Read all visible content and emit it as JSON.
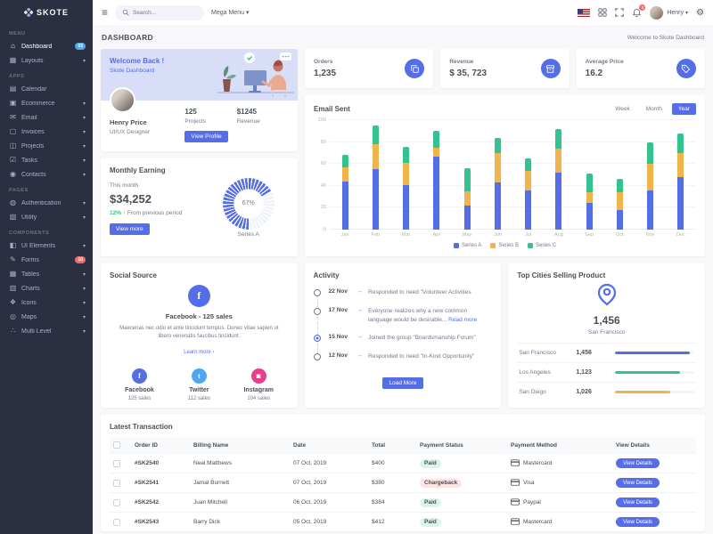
{
  "colors": {
    "primary": "#556ee6",
    "success": "#34c38f",
    "warning": "#f1b44c",
    "danger": "#f46a6a",
    "info": "#50a5f1",
    "instagram": "#e83e8c",
    "sidebar_bg": "#2a3042",
    "body_bg": "#f8f8fb"
  },
  "brand": {
    "name": "SKOTE"
  },
  "topbar": {
    "search_placeholder": "Search...",
    "mega_menu_label": "Mega Menu",
    "notification_count": "3",
    "user_name": "Henry"
  },
  "page": {
    "title": "DASHBOARD",
    "welcome_note": "Welcome to Skote Dashboard"
  },
  "sidebar": {
    "sections": [
      {
        "label": "MENU",
        "items": [
          {
            "label": "Dashboard",
            "icon": "home-icon",
            "glyph": "⌂",
            "badge": "03",
            "badge_color": "#50a5f1",
            "active": true
          },
          {
            "label": "Layouts",
            "icon": "layouts-icon",
            "glyph": "▦",
            "chevron": true
          }
        ]
      },
      {
        "label": "APPS",
        "items": [
          {
            "label": "Calendar",
            "icon": "calendar-icon",
            "glyph": "▤"
          },
          {
            "label": "Ecommerce",
            "icon": "ecommerce-icon",
            "glyph": "▣",
            "chevron": true
          },
          {
            "label": "Email",
            "icon": "email-icon",
            "glyph": "✉",
            "chevron": true
          },
          {
            "label": "Invoices",
            "icon": "invoices-icon",
            "glyph": "▢",
            "chevron": true
          },
          {
            "label": "Projects",
            "icon": "projects-icon",
            "glyph": "◫",
            "chevron": true
          },
          {
            "label": "Tasks",
            "icon": "tasks-icon",
            "glyph": "☑",
            "chevron": true
          },
          {
            "label": "Contacts",
            "icon": "contacts-icon",
            "glyph": "◉",
            "chevron": true
          }
        ]
      },
      {
        "label": "PAGES",
        "items": [
          {
            "label": "Authentication",
            "icon": "authentication-icon",
            "glyph": "◍",
            "chevron": true
          },
          {
            "label": "Utility",
            "icon": "utility-icon",
            "glyph": "▧",
            "chevron": true
          }
        ]
      },
      {
        "label": "COMPONENTS",
        "items": [
          {
            "label": "UI Elements",
            "icon": "ui-elements-icon",
            "glyph": "◧",
            "chevron": true
          },
          {
            "label": "Forms",
            "icon": "forms-icon",
            "glyph": "✎",
            "badge": "10",
            "badge_color": "#f46a6a"
          },
          {
            "label": "Tables",
            "icon": "tables-icon",
            "glyph": "▦",
            "chevron": true
          },
          {
            "label": "Charts",
            "icon": "charts-icon",
            "glyph": "▥",
            "chevron": true
          },
          {
            "label": "Icons",
            "icon": "icons-icon",
            "glyph": "❖",
            "chevron": true
          },
          {
            "label": "Maps",
            "icon": "maps-icon",
            "glyph": "◎",
            "chevron": true
          },
          {
            "label": "Multi Level",
            "icon": "multi-level-icon",
            "glyph": "∴",
            "chevron": true
          }
        ]
      }
    ]
  },
  "welcome_card": {
    "title": "Welcome Back !",
    "subtitle": "Skote Dashboard",
    "user_name": "Henry Price",
    "user_role": "UI/UX Designer",
    "stats": [
      {
        "value": "125",
        "label": "Projects"
      },
      {
        "value": "$1245",
        "label": "Revenue"
      }
    ],
    "button_label": "View Profile"
  },
  "monthly_earning": {
    "title": "Monthly Earning",
    "period": "This month",
    "amount": "$34,252",
    "delta": "12%",
    "delta_note": "From previous period",
    "button_label": "View more",
    "gauge_percent": "67%",
    "gauge_series": "Series A"
  },
  "stat_cards": [
    {
      "label": "Orders",
      "value": "1,235",
      "icon": "copy-icon"
    },
    {
      "label": "Revenue",
      "value": "$ 35, 723",
      "icon": "archive-icon"
    },
    {
      "label": "Average Price",
      "value": "16.2",
      "icon": "tag-icon"
    }
  ],
  "email_sent": {
    "title": "Email Sent",
    "range_buttons": [
      "Week",
      "Month",
      "Year"
    ],
    "active_range": "Year"
  },
  "chart_data": [
    {
      "type": "bar",
      "stacked": true,
      "title": "Email Sent",
      "categories": [
        "Jan",
        "Feb",
        "Mar",
        "Apr",
        "May",
        "Jun",
        "Jul",
        "Aug",
        "Sep",
        "Oct",
        "Nov",
        "Dec"
      ],
      "series": [
        {
          "name": "Series A",
          "color": "#556ee6",
          "values": [
            44,
            55,
            41,
            67,
            22,
            43,
            36,
            52,
            24,
            18,
            36,
            48
          ]
        },
        {
          "name": "Series B",
          "color": "#f1b44c",
          "values": [
            13,
            23,
            20,
            8,
            13,
            27,
            18,
            22,
            10,
            16,
            24,
            22
          ]
        },
        {
          "name": "Series C",
          "color": "#34c38f",
          "values": [
            11,
            17,
            15,
            15,
            21,
            14,
            11,
            18,
            17,
            12,
            20,
            18
          ]
        }
      ],
      "xlabel": "",
      "ylabel": "",
      "ylim": [
        0,
        100
      ],
      "yticks": [
        0,
        20,
        40,
        60,
        80,
        100
      ],
      "grid": true,
      "legend_position": "bottom"
    },
    {
      "type": "radial",
      "title": "Monthly Earning",
      "series_name": "Series A",
      "value_percent": 67,
      "color": "#556ee6"
    },
    {
      "type": "bar",
      "title": "Top Cities Selling Product",
      "categories": [
        "San Francisco",
        "Los Angeles",
        "San Diego"
      ],
      "values": [
        1456,
        1123,
        1026
      ]
    }
  ],
  "social": {
    "title": "Social Source",
    "main_name": "Facebook",
    "main_sales": "125 sales",
    "description": "Maecenas nec odio et ante tincidunt tempus. Donec vitae sapien ut libero venenatis faucibus tincidunt.",
    "learn_more": "Learn more",
    "accounts": [
      {
        "name": "Facebook",
        "sales": "125 sales",
        "color": "#556ee6",
        "icon": "facebook-icon",
        "glyph": "f"
      },
      {
        "name": "Twitter",
        "sales": "112 sales",
        "color": "#50a5f1",
        "icon": "twitter-icon",
        "glyph": "t"
      },
      {
        "name": "Instagram",
        "sales": "104 sales",
        "color": "#e83e8c",
        "icon": "instagram-icon",
        "glyph": "◙"
      }
    ]
  },
  "activity": {
    "title": "Activity",
    "items": [
      {
        "date": "22 Nov",
        "text": "Responded to need \"Volunteer Activities",
        "active": false
      },
      {
        "date": "17 Nov",
        "text": "Everyone realizes why a new common language would be desirable...",
        "link": "Read more",
        "active": false
      },
      {
        "date": "15 Nov",
        "text": "Joined the group \"Boardsmanship Forum\"",
        "active": true
      },
      {
        "date": "12 Nov",
        "text": "Responded to need \"In-Kind Opportunity\"",
        "active": false
      }
    ],
    "button_label": "Load More"
  },
  "top_cities": {
    "title": "Top Cities Selling Product",
    "highlight_value": "1,456",
    "highlight_city": "San Francisco",
    "rows": [
      {
        "city": "San Francisco",
        "value": "1,456",
        "pct": 94,
        "color": "#556ee6"
      },
      {
        "city": "Los Angeles",
        "value": "1,123",
        "pct": 82,
        "color": "#34c38f"
      },
      {
        "city": "San Diego",
        "value": "1,026",
        "pct": 70,
        "color": "#f1b44c"
      }
    ]
  },
  "transactions": {
    "title": "Latest Transaction",
    "columns": [
      "Order ID",
      "Billing Name",
      "Date",
      "Total",
      "Payment Status",
      "Payment Method",
      "View Details"
    ],
    "rows": [
      {
        "order_id": "#SK2540",
        "name": "Neal Matthews",
        "date": "07 Oct, 2019",
        "total": "$400",
        "status": "Paid",
        "status_type": "success",
        "method": "Mastercard",
        "action": "View Details"
      },
      {
        "order_id": "#SK2541",
        "name": "Jamal Burnett",
        "date": "07 Oct, 2019",
        "total": "$380",
        "status": "Chargeback",
        "status_type": "danger",
        "method": "Visa",
        "action": "View Details"
      },
      {
        "order_id": "#SK2542",
        "name": "Juan Mitchell",
        "date": "06 Oct, 2019",
        "total": "$384",
        "status": "Paid",
        "status_type": "success",
        "method": "Paypal",
        "action": "View Details"
      },
      {
        "order_id": "#SK2543",
        "name": "Barry Dick",
        "date": "05 Oct, 2019",
        "total": "$412",
        "status": "Paid",
        "status_type": "success",
        "method": "Mastercard",
        "action": "View Details"
      }
    ]
  }
}
